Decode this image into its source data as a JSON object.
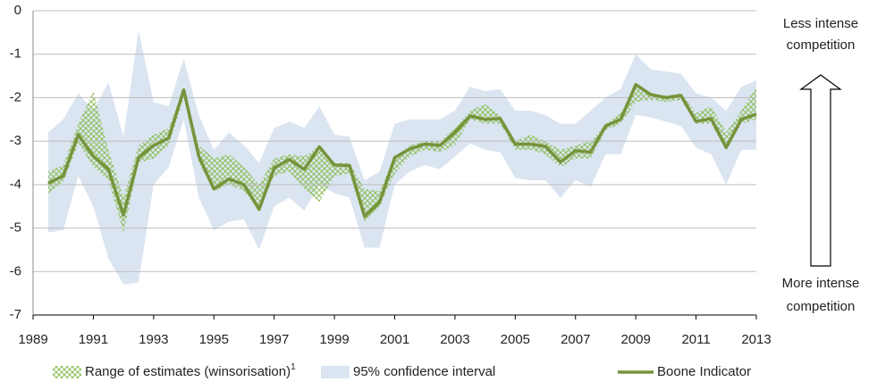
{
  "chart_data": {
    "type": "line",
    "x": [
      1989.5,
      1990,
      1990.5,
      1991,
      1991.5,
      1992,
      1992.5,
      1993,
      1993.5,
      1994,
      1994.5,
      1995,
      1995.5,
      1996,
      1996.5,
      1997,
      1997.5,
      1998,
      1998.5,
      1999,
      1999.5,
      2000,
      2000.5,
      2001,
      2001.5,
      2002,
      2002.5,
      2003,
      2003.5,
      2004,
      2004.5,
      2005,
      2005.5,
      2006,
      2006.5,
      2007,
      2007.5,
      2008,
      2008.5,
      2009,
      2009.5,
      2010,
      2010.5,
      2011,
      2011.5,
      2012,
      2012.5,
      2013
    ],
    "xlim": [
      1989,
      2013
    ],
    "xticks": [
      1989,
      1991,
      1993,
      1995,
      1997,
      1999,
      2001,
      2003,
      2005,
      2007,
      2009,
      2011,
      2013
    ],
    "ylim": [
      -7,
      0
    ],
    "yticks": [
      0,
      -1,
      -2,
      -3,
      -4,
      -5,
      -6,
      -7
    ],
    "grid": true,
    "series": [
      {
        "name": "Range of estimates (winsorisation)",
        "footnote": "1",
        "kind": "hatched-band",
        "color": "#8cbf5a",
        "upper": [
          -3.7,
          -3.55,
          -2.6,
          -1.85,
          -3.2,
          -4.3,
          -3.1,
          -2.85,
          -2.7,
          -1.8,
          -3.1,
          -3.4,
          -3.3,
          -3.6,
          -4.0,
          -3.4,
          -3.3,
          -3.35,
          -3.1,
          -3.5,
          -3.5,
          -4.1,
          -4.15,
          -3.35,
          -3.1,
          -3.0,
          -3.0,
          -2.7,
          -2.3,
          -2.15,
          -2.4,
          -3.0,
          -2.85,
          -3.0,
          -3.2,
          -3.1,
          -3.0,
          -2.6,
          -2.35,
          -1.75,
          -1.9,
          -1.95,
          -1.9,
          -2.35,
          -2.2,
          -2.8,
          -2.3,
          -1.75
        ],
        "lower": [
          -4.2,
          -3.95,
          -3.05,
          -3.6,
          -3.9,
          -5.1,
          -3.5,
          -3.4,
          -3.1,
          -2.0,
          -3.5,
          -4.15,
          -4.0,
          -4.15,
          -4.6,
          -3.8,
          -3.7,
          -4.1,
          -4.4,
          -3.8,
          -3.75,
          -4.85,
          -4.5,
          -3.75,
          -3.35,
          -3.2,
          -3.25,
          -3.1,
          -2.5,
          -2.6,
          -2.6,
          -3.2,
          -3.2,
          -3.3,
          -3.6,
          -3.4,
          -3.4,
          -2.75,
          -2.6,
          -2.1,
          -2.05,
          -2.1,
          -2.05,
          -2.6,
          -2.6,
          -3.2,
          -2.6,
          -2.5
        ]
      },
      {
        "name": "95% confidence interval",
        "kind": "band",
        "color": "#dbe5f1",
        "upper": [
          -2.8,
          -2.5,
          -1.9,
          -2.3,
          -1.65,
          -2.9,
          -0.45,
          -2.1,
          -2.2,
          -1.1,
          -2.4,
          -3.2,
          -2.8,
          -3.1,
          -3.5,
          -2.7,
          -2.55,
          -2.7,
          -2.2,
          -2.85,
          -2.9,
          -3.9,
          -3.7,
          -2.6,
          -2.5,
          -2.5,
          -2.5,
          -2.3,
          -1.75,
          -1.85,
          -1.8,
          -2.3,
          -2.3,
          -2.4,
          -2.6,
          -2.6,
          -2.3,
          -2.0,
          -1.8,
          -1.0,
          -1.35,
          -1.4,
          -1.45,
          -1.9,
          -2.0,
          -2.3,
          -1.75,
          -1.6
        ],
        "lower": [
          -5.1,
          -5.05,
          -3.8,
          -4.5,
          -5.7,
          -6.3,
          -6.25,
          -4.0,
          -3.6,
          -2.5,
          -4.3,
          -5.05,
          -4.85,
          -4.8,
          -5.5,
          -4.5,
          -4.3,
          -4.6,
          -4.0,
          -4.2,
          -4.3,
          -5.45,
          -5.45,
          -4.0,
          -3.7,
          -3.55,
          -3.65,
          -3.35,
          -3.05,
          -3.2,
          -3.25,
          -3.85,
          -3.9,
          -3.9,
          -4.3,
          -3.9,
          -4.05,
          -3.3,
          -3.3,
          -2.4,
          -2.45,
          -2.55,
          -2.65,
          -3.15,
          -3.3,
          -4.0,
          -3.2,
          -3.2
        ]
      },
      {
        "name": "Boone Indicator",
        "kind": "line",
        "color": "#77933c",
        "values": [
          -3.97,
          -3.8,
          -2.85,
          -3.35,
          -3.65,
          -4.7,
          -3.38,
          -3.1,
          -2.93,
          -1.82,
          -3.35,
          -4.1,
          -3.87,
          -4.0,
          -4.57,
          -3.62,
          -3.42,
          -3.65,
          -3.13,
          -3.55,
          -3.56,
          -4.73,
          -4.4,
          -3.38,
          -3.18,
          -3.07,
          -3.1,
          -2.8,
          -2.42,
          -2.5,
          -2.48,
          -3.07,
          -3.07,
          -3.12,
          -3.48,
          -3.22,
          -3.25,
          -2.65,
          -2.5,
          -1.7,
          -1.93,
          -2.0,
          -1.95,
          -2.55,
          -2.48,
          -3.15,
          -2.5,
          -2.38
        ]
      }
    ],
    "annotations": [
      [
        "Less intense",
        "competition"
      ],
      [
        "More intense",
        "competition"
      ]
    ]
  }
}
